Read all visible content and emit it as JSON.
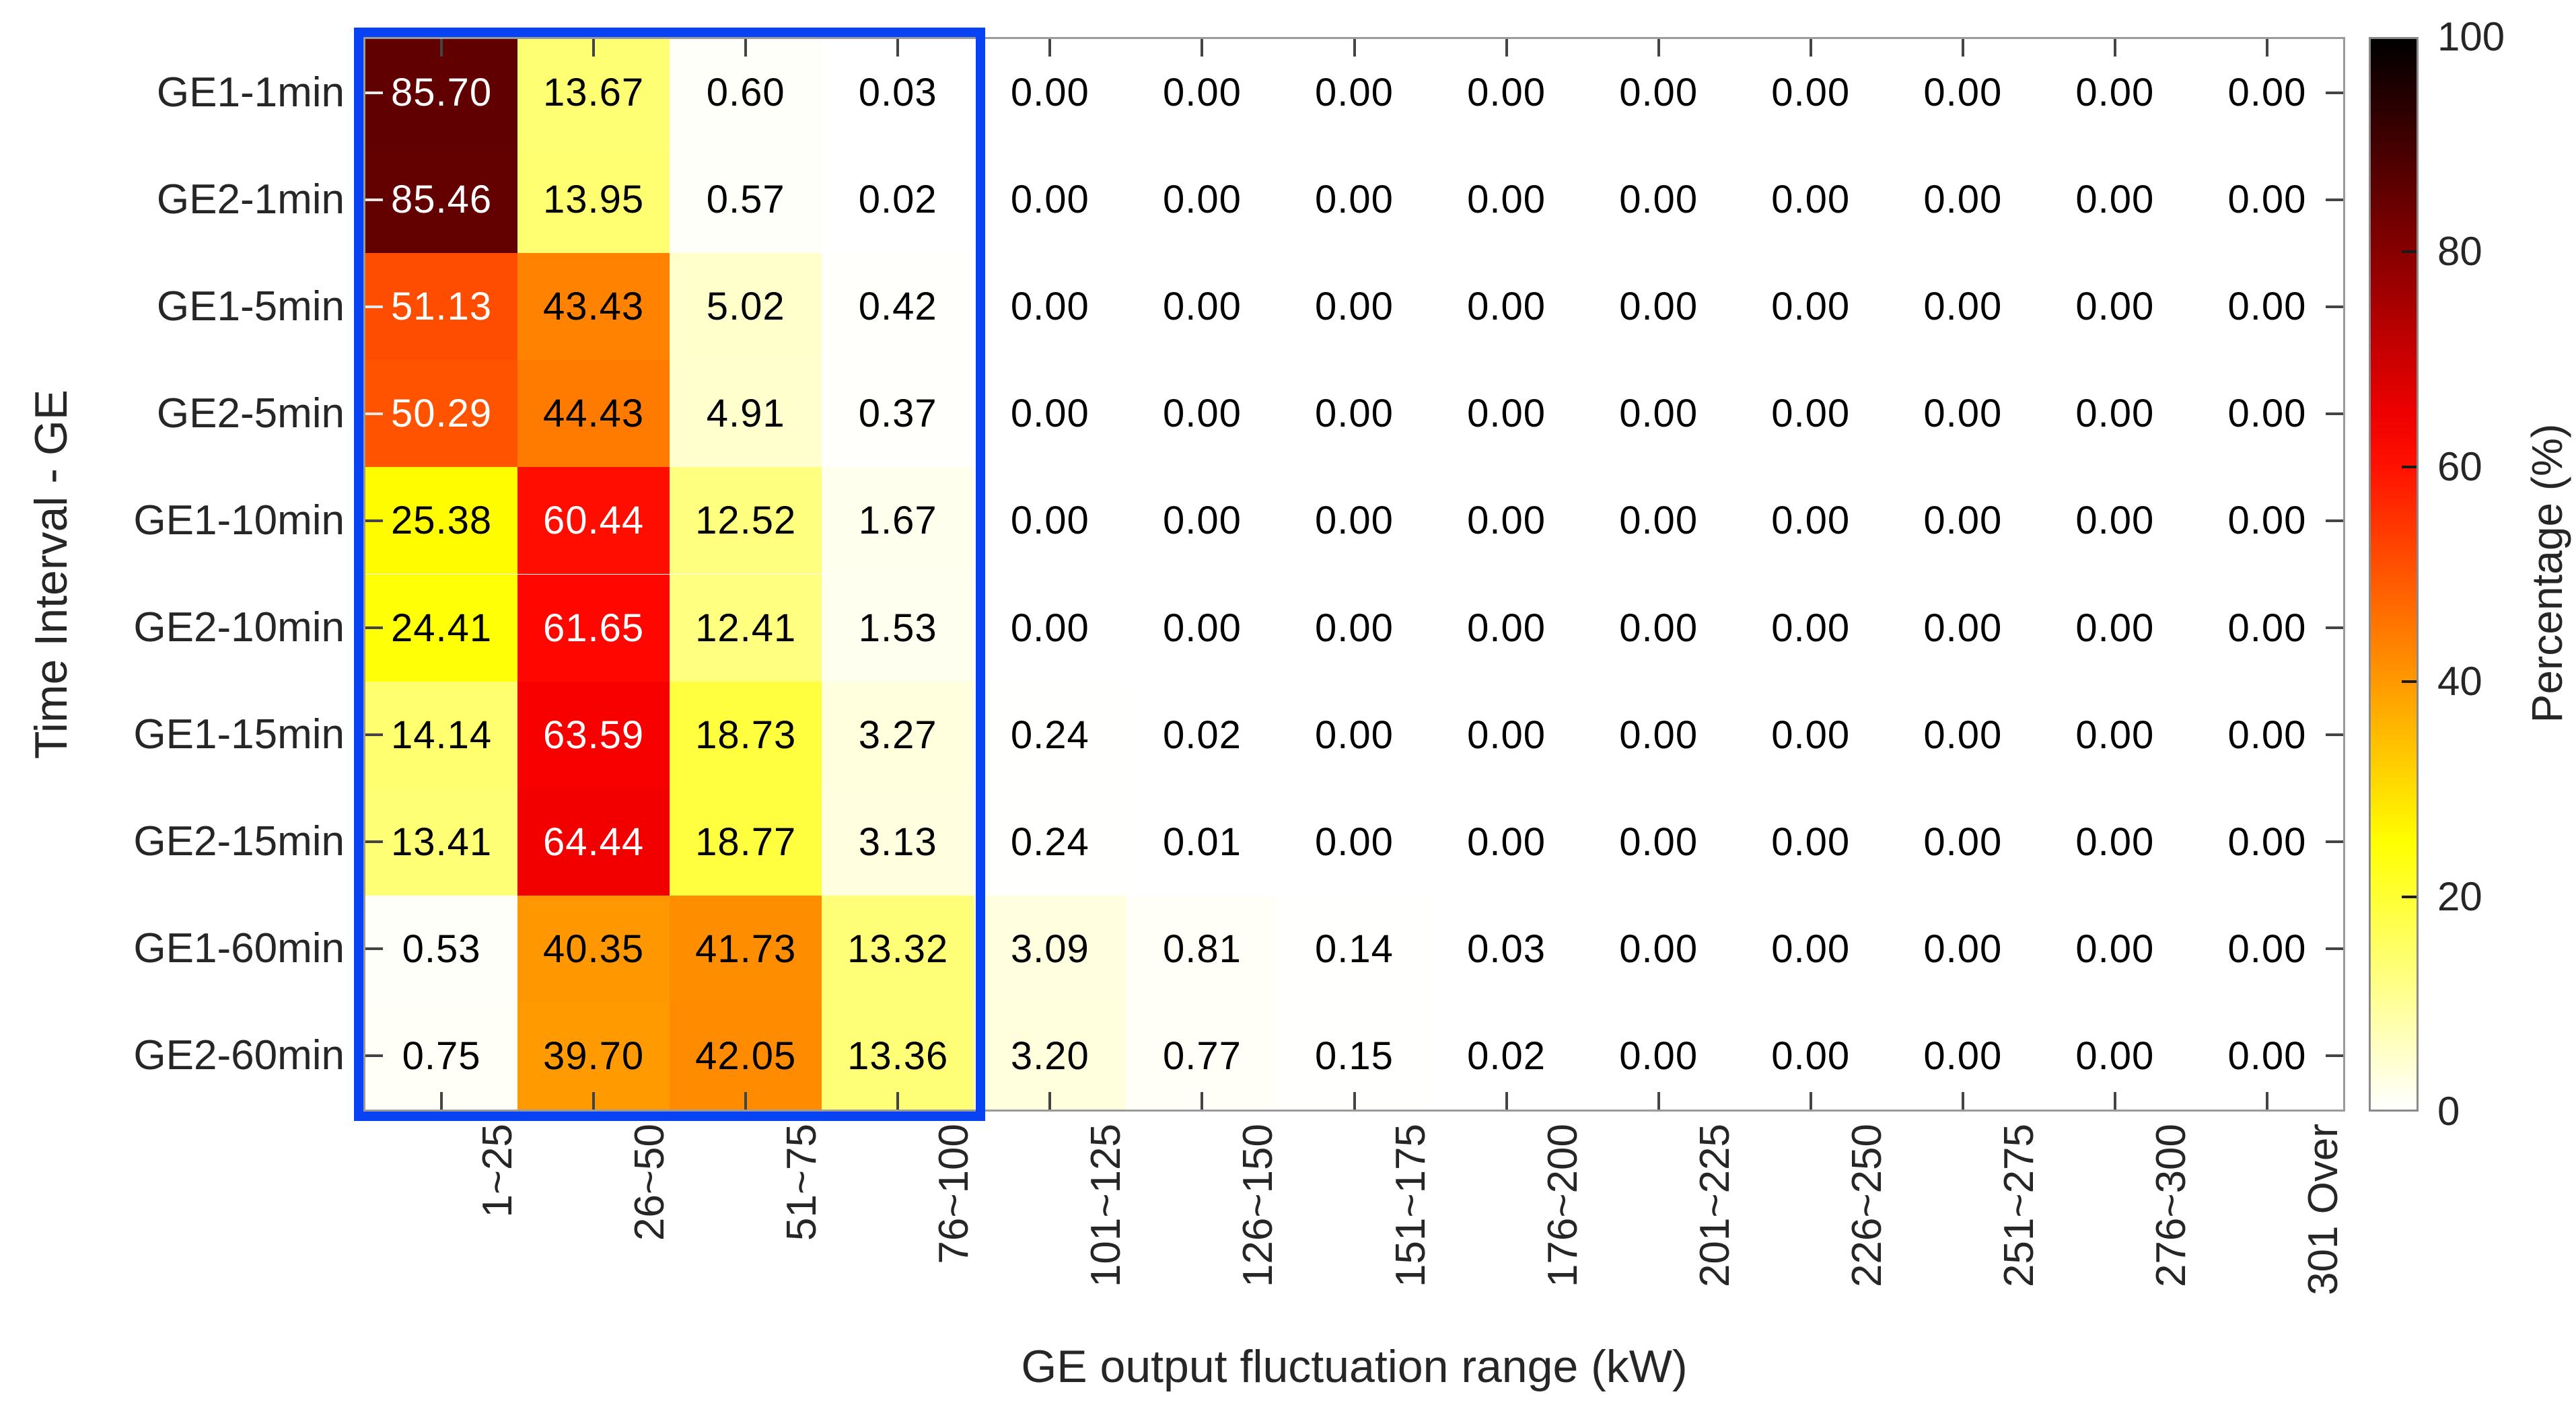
{
  "chart_data": {
    "type": "heatmap",
    "xlabel": "GE output fluctuation range (kW)",
    "ylabel": "Time Interval - GE",
    "x_categories": [
      "1~25",
      "26~50",
      "51~75",
      "76~100",
      "101~125",
      "126~150",
      "151~175",
      "176~200",
      "201~225",
      "226~250",
      "251~275",
      "276~300",
      "301 Over"
    ],
    "y_categories": [
      "GE1-1min",
      "GE2-1min",
      "GE1-5min",
      "GE2-5min",
      "GE1-10min",
      "GE2-10min",
      "GE1-15min",
      "GE2-15min",
      "GE1-60min",
      "GE2-60min"
    ],
    "values": [
      [
        85.7,
        13.67,
        0.6,
        0.03,
        0.0,
        0.0,
        0.0,
        0.0,
        0.0,
        0.0,
        0.0,
        0.0,
        0.0
      ],
      [
        85.46,
        13.95,
        0.57,
        0.02,
        0.0,
        0.0,
        0.0,
        0.0,
        0.0,
        0.0,
        0.0,
        0.0,
        0.0
      ],
      [
        51.13,
        43.43,
        5.02,
        0.42,
        0.0,
        0.0,
        0.0,
        0.0,
        0.0,
        0.0,
        0.0,
        0.0,
        0.0
      ],
      [
        50.29,
        44.43,
        4.91,
        0.37,
        0.0,
        0.0,
        0.0,
        0.0,
        0.0,
        0.0,
        0.0,
        0.0,
        0.0
      ],
      [
        25.38,
        60.44,
        12.52,
        1.67,
        0.0,
        0.0,
        0.0,
        0.0,
        0.0,
        0.0,
        0.0,
        0.0,
        0.0
      ],
      [
        24.41,
        61.65,
        12.41,
        1.53,
        0.0,
        0.0,
        0.0,
        0.0,
        0.0,
        0.0,
        0.0,
        0.0,
        0.0
      ],
      [
        14.14,
        63.59,
        18.73,
        3.27,
        0.24,
        0.02,
        0.0,
        0.0,
        0.0,
        0.0,
        0.0,
        0.0,
        0.0
      ],
      [
        13.41,
        64.44,
        18.77,
        3.13,
        0.24,
        0.01,
        0.0,
        0.0,
        0.0,
        0.0,
        0.0,
        0.0,
        0.0
      ],
      [
        0.53,
        40.35,
        41.73,
        13.32,
        3.09,
        0.81,
        0.14,
        0.03,
        0.0,
        0.0,
        0.0,
        0.0,
        0.0
      ],
      [
        0.75,
        39.7,
        42.05,
        13.36,
        3.2,
        0.77,
        0.15,
        0.02,
        0.0,
        0.0,
        0.0,
        0.0,
        0.0
      ]
    ],
    "value_decimals": 2,
    "colormap": "hot-reversed",
    "value_range": [
      0,
      100
    ],
    "white_text_threshold": 50,
    "colorbar": {
      "label": "Percentage (%)",
      "ticks": [
        0,
        20,
        40,
        60,
        80,
        100
      ],
      "range": [
        0,
        100
      ]
    },
    "highlight": {
      "description": "blue rectangle around first four columns",
      "columns_start": 1,
      "columns_end": 4,
      "color": "#0743f2"
    },
    "colors": {
      "axis_border": "#9a9a9a",
      "tick": "#444444",
      "text": "#262626"
    }
  }
}
